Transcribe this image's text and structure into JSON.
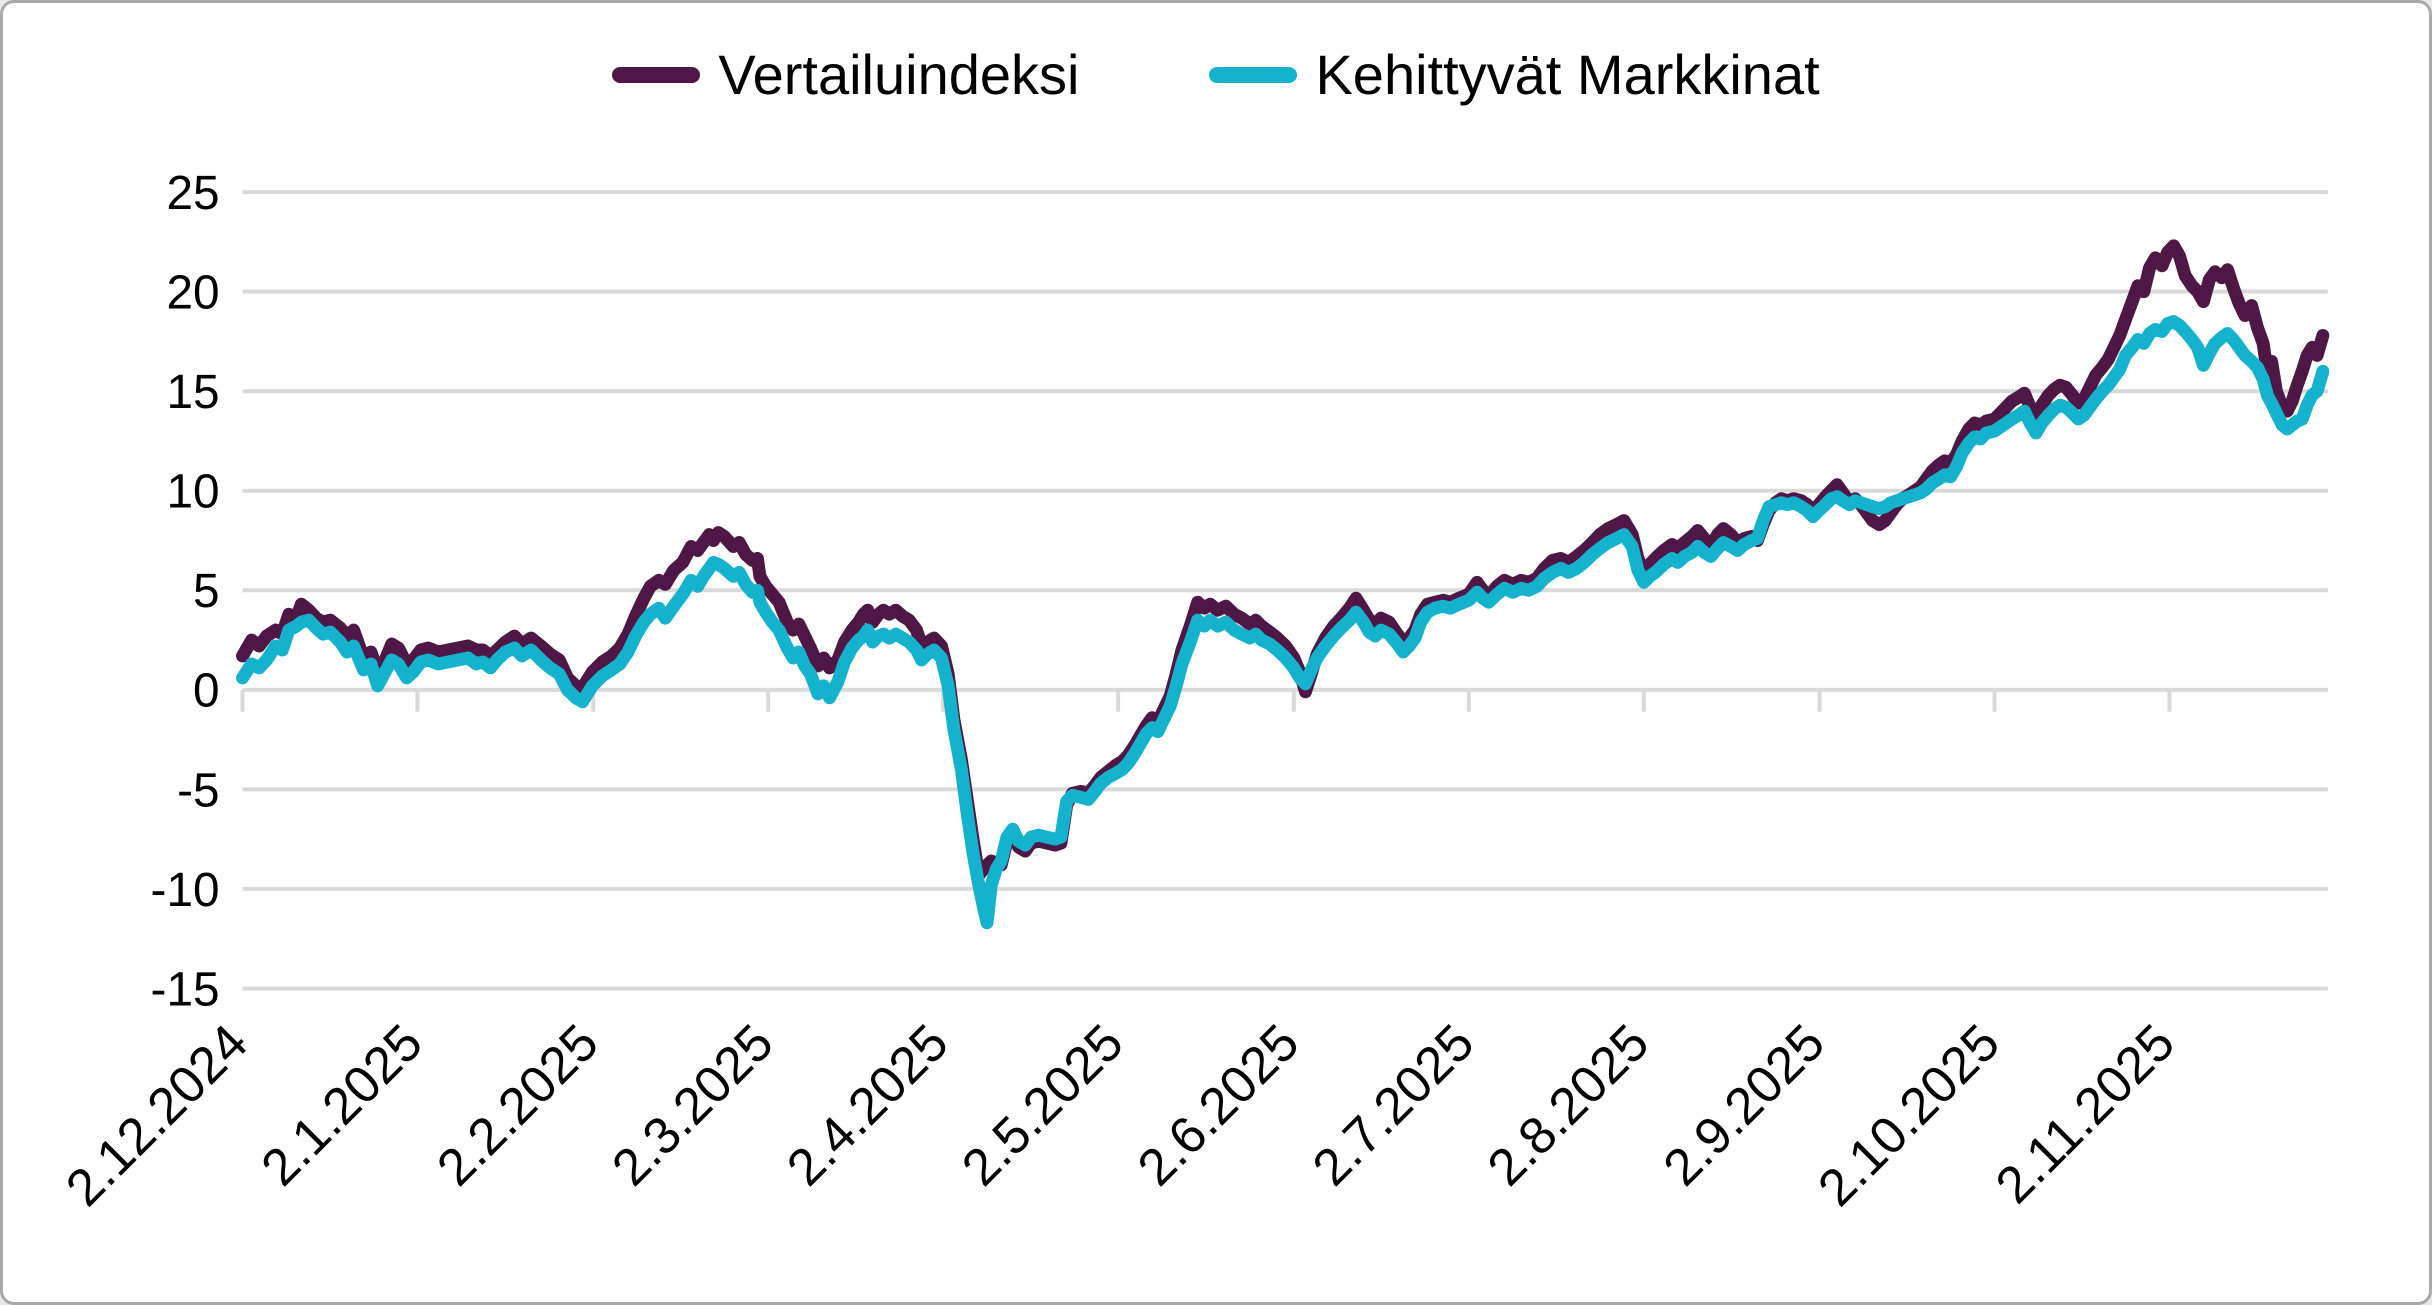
{
  "chart_data": {
    "type": "line",
    "title": "",
    "xlabel": "",
    "ylabel": "",
    "grid": "horizontal",
    "legend_position": "top-center",
    "y_axis": {
      "min": -15,
      "max": 25,
      "step": 5,
      "tick_labels": [
        "25",
        "20",
        "15",
        "10",
        "5",
        "0",
        "-5",
        "-10",
        "-15"
      ]
    },
    "x_axis": {
      "unit": "trading days since first date",
      "max_day": 251.5,
      "tick_labels": [
        "2.12.2024",
        "2.1.2025",
        "2.2.2025",
        "2.3.2025",
        "2.4.2025",
        "2.5.2025",
        "2.6.2025",
        "2.7.2025",
        "2.8.2025",
        "2.9.2025",
        "2.10.2025",
        "2.11.2025"
      ],
      "tick_days": [
        0,
        21.1,
        42.3,
        63.4,
        84.5,
        105.6,
        126.8,
        147.9,
        169,
        190.2,
        211.3,
        232.4
      ]
    },
    "series": [
      {
        "name": "Vertailuindeksi",
        "color": "#4e1745",
        "width": 13
      },
      {
        "name": "Kehittyvät Markkinat",
        "color": "#14b2cc",
        "width": 13
      }
    ],
    "points_format": [
      "day",
      "Vertailuindeksi",
      "Kehittyvät Markkinat"
    ],
    "points": [
      [
        0,
        1.7,
        0.6
      ],
      [
        1.1,
        2.5,
        1.3
      ],
      [
        2,
        2.2,
        1.1
      ],
      [
        2.9,
        2.7,
        1.5
      ],
      [
        4,
        3,
        2.2
      ],
      [
        4.8,
        2.8,
        2
      ],
      [
        5.6,
        3.8,
        3
      ],
      [
        6.5,
        3.6,
        3.2
      ],
      [
        7.1,
        4.3,
        3.4
      ],
      [
        8,
        4,
        3.5
      ],
      [
        8.9,
        3.6,
        3.1
      ],
      [
        9.7,
        3.4,
        2.8
      ],
      [
        10.6,
        3.5,
        2.9
      ],
      [
        11.8,
        3.1,
        2.4
      ],
      [
        12.6,
        2.7,
        1.9
      ],
      [
        13.4,
        3,
        2.2
      ],
      [
        14.6,
        1.6,
        1
      ],
      [
        15.5,
        1.9,
        1.3
      ],
      [
        16.3,
        0.9,
        0.2
      ],
      [
        17.2,
        1.5,
        0.9
      ],
      [
        18,
        2.3,
        1.5
      ],
      [
        18.8,
        2.1,
        1.3
      ],
      [
        19.8,
        1.3,
        0.6
      ],
      [
        20.6,
        1.5,
        0.9
      ],
      [
        21.5,
        2,
        1.4
      ],
      [
        22.4,
        2.1,
        1.5
      ],
      [
        23.6,
        1.9,
        1.3
      ],
      [
        24.8,
        2,
        1.4
      ],
      [
        26,
        2.1,
        1.5
      ],
      [
        27.2,
        2.2,
        1.6
      ],
      [
        28.2,
        2,
        1.3
      ],
      [
        29,
        2,
        1.4
      ],
      [
        29.9,
        1.7,
        1.1
      ],
      [
        30.7,
        2,
        1.5
      ],
      [
        31.7,
        2.4,
        1.9
      ],
      [
        32.8,
        2.7,
        2.1
      ],
      [
        33.7,
        2.3,
        1.7
      ],
      [
        34.8,
        2.6,
        2
      ],
      [
        36,
        2.2,
        1.5
      ],
      [
        37.1,
        1.8,
        1.1
      ],
      [
        38.2,
        1.5,
        0.8
      ],
      [
        39.2,
        0.6,
        0
      ],
      [
        40.2,
        0.2,
        -0.4
      ],
      [
        41,
        0.1,
        -0.6
      ],
      [
        42.2,
        0.9,
        0.2
      ],
      [
        43.4,
        1.4,
        0.7
      ],
      [
        44.5,
        1.7,
        1
      ],
      [
        45.5,
        2.1,
        1.3
      ],
      [
        46.5,
        2.8,
        1.9
      ],
      [
        47.4,
        3.7,
        2.7
      ],
      [
        48.4,
        4.6,
        3.4
      ],
      [
        49.2,
        5.2,
        3.8
      ],
      [
        50.2,
        5.5,
        4.1
      ],
      [
        51,
        5.3,
        3.6
      ],
      [
        52,
        6,
        4.2
      ],
      [
        53.1,
        6.4,
        4.8
      ],
      [
        54.1,
        7.2,
        5.5
      ],
      [
        54.9,
        7,
        5.2
      ],
      [
        55.6,
        7.4,
        5.7
      ],
      [
        56.3,
        7.8,
        6.1
      ],
      [
        56.8,
        7.5,
        6.4
      ],
      [
        57.4,
        7.9,
        6.3
      ],
      [
        58.1,
        7.7,
        6.1
      ],
      [
        59.2,
        7.2,
        5.7
      ],
      [
        59.9,
        7.4,
        5.9
      ],
      [
        60.7,
        6.8,
        5.3
      ],
      [
        61.5,
        6.5,
        4.9
      ],
      [
        62.1,
        6.6,
        5
      ],
      [
        62.4,
        5.7,
        4.4
      ],
      [
        63.1,
        5.2,
        3.9
      ],
      [
        63.9,
        4.8,
        3.4
      ],
      [
        64.7,
        4.4,
        3
      ],
      [
        65.7,
        3.4,
        2.1
      ],
      [
        66.4,
        3,
        1.6
      ],
      [
        67.1,
        3.3,
        1.9
      ],
      [
        67.8,
        2.7,
        1.2
      ],
      [
        68.5,
        2.1,
        0.8
      ],
      [
        69.4,
        1.2,
        -0.2
      ],
      [
        70.1,
        1.6,
        0.2
      ],
      [
        70.8,
        1.1,
        -0.4
      ],
      [
        71.8,
        1.5,
        0.4
      ],
      [
        72.6,
        2.4,
        1.4
      ],
      [
        73.5,
        3,
        2.1
      ],
      [
        74.3,
        3.4,
        2.5
      ],
      [
        74.9,
        3.8,
        2.7
      ],
      [
        75.4,
        4,
        3
      ],
      [
        76,
        3.4,
        2.4
      ],
      [
        76.7,
        3.8,
        2.7
      ],
      [
        77.3,
        4,
        2.8
      ],
      [
        78,
        3.8,
        2.6
      ],
      [
        78.8,
        4,
        2.8
      ],
      [
        79.6,
        3.7,
        2.6
      ],
      [
        80.4,
        3.5,
        2.4
      ],
      [
        81.3,
        3,
        2
      ],
      [
        81.9,
        2.2,
        1.5
      ],
      [
        82.6,
        2.4,
        1.8
      ],
      [
        83.4,
        2.6,
        2
      ],
      [
        84.3,
        2.2,
        1.6
      ],
      [
        85.1,
        0.8,
        0.2
      ],
      [
        85.8,
        -1.5,
        -2
      ],
      [
        86.7,
        -3.5,
        -4
      ],
      [
        87.4,
        -5.5,
        -6.2
      ],
      [
        88.1,
        -7.5,
        -8.2
      ],
      [
        88.8,
        -9.3,
        -9.8
      ],
      [
        89.4,
        -9,
        -11
      ],
      [
        89.8,
        -8.8,
        -11.7
      ],
      [
        90.3,
        -8.6,
        -9.8
      ],
      [
        90.9,
        -8.7,
        -9
      ],
      [
        91.5,
        -8.8,
        -8.6
      ],
      [
        92.2,
        -7.6,
        -7.4
      ],
      [
        92.9,
        -7.2,
        -7
      ],
      [
        93.6,
        -7.9,
        -7.6
      ],
      [
        94.4,
        -8.1,
        -7.8
      ],
      [
        95.1,
        -7.7,
        -7.4
      ],
      [
        96,
        -7.6,
        -7.3
      ],
      [
        97,
        -7.7,
        -7.4
      ],
      [
        98,
        -7.8,
        -7.5
      ],
      [
        98.7,
        -7.7,
        -7.4
      ],
      [
        99.4,
        -5.8,
        -5.6
      ],
      [
        100.1,
        -5.2,
        -5.3
      ],
      [
        101.1,
        -5.1,
        -5.4
      ],
      [
        102,
        -5.2,
        -5.5
      ],
      [
        102.8,
        -4.8,
        -5.1
      ],
      [
        103.5,
        -4.4,
        -4.7
      ],
      [
        104.4,
        -4.1,
        -4.4
      ],
      [
        105.3,
        -3.8,
        -4.2
      ],
      [
        106.1,
        -3.6,
        -4
      ],
      [
        106.8,
        -3.3,
        -3.7
      ],
      [
        107.6,
        -2.8,
        -3.2
      ],
      [
        108.3,
        -2.3,
        -2.7
      ],
      [
        109,
        -1.8,
        -2.2
      ],
      [
        109.7,
        -1.4,
        -1.9
      ],
      [
        110.4,
        -1.6,
        -2.1
      ],
      [
        111.2,
        -0.9,
        -1.4
      ],
      [
        111.9,
        -0.3,
        -0.8
      ],
      [
        112.6,
        0.8,
        0.2
      ],
      [
        113.3,
        2,
        1.3
      ],
      [
        114.3,
        3.2,
        2.4
      ],
      [
        115.2,
        4.4,
        3.5
      ],
      [
        116,
        4.1,
        3.2
      ],
      [
        116.7,
        4.3,
        3.5
      ],
      [
        117.6,
        4,
        3.2
      ],
      [
        118.6,
        4.2,
        3.4
      ],
      [
        119.6,
        3.8,
        3
      ],
      [
        120.5,
        3.6,
        2.8
      ],
      [
        121.5,
        3.3,
        2.6
      ],
      [
        122.2,
        3.5,
        2.8
      ],
      [
        122.9,
        3.2,
        2.5
      ],
      [
        123.9,
        2.9,
        2.3
      ],
      [
        124.8,
        2.6,
        2
      ],
      [
        125.8,
        2.2,
        1.6
      ],
      [
        126.8,
        1.6,
        1.1
      ],
      [
        127.5,
        0.9,
        0.6
      ],
      [
        128.2,
        -0.1,
        0.3
      ],
      [
        128.9,
        0.8,
        1
      ],
      [
        129.6,
        1.8,
        1.6
      ],
      [
        130.6,
        2.6,
        2.2
      ],
      [
        131.6,
        3.2,
        2.7
      ],
      [
        132.5,
        3.6,
        3.1
      ],
      [
        133.5,
        4.1,
        3.5
      ],
      [
        134.3,
        4.6,
        3.9
      ],
      [
        135.2,
        4,
        3.4
      ],
      [
        135.9,
        3.5,
        2.9
      ],
      [
        136.6,
        3.3,
        2.7
      ],
      [
        137.3,
        3.6,
        3
      ],
      [
        138.3,
        3.4,
        2.8
      ],
      [
        139.1,
        2.9,
        2.4
      ],
      [
        140,
        2.4,
        1.9
      ],
      [
        140.7,
        2.6,
        2.2
      ],
      [
        141.4,
        3,
        2.6
      ],
      [
        142.1,
        3.8,
        3.4
      ],
      [
        142.9,
        4.3,
        3.9
      ],
      [
        143.8,
        4.4,
        4.1
      ],
      [
        144.8,
        4.5,
        4.2
      ],
      [
        145.7,
        4.4,
        4.1
      ],
      [
        146.7,
        4.6,
        4.3
      ],
      [
        147.9,
        4.8,
        4.5
      ],
      [
        148.9,
        5.4,
        4.9
      ],
      [
        149.6,
        5,
        4.6
      ],
      [
        150.3,
        4.7,
        4.4
      ],
      [
        151.3,
        5.2,
        4.8
      ],
      [
        152.2,
        5.5,
        5.1
      ],
      [
        153.2,
        5.3,
        4.9
      ],
      [
        154.2,
        5.5,
        5.1
      ],
      [
        155.1,
        5.4,
        5
      ],
      [
        156.1,
        5.6,
        5.2
      ],
      [
        157,
        6.1,
        5.6
      ],
      [
        158,
        6.5,
        5.9
      ],
      [
        159,
        6.6,
        6.1
      ],
      [
        159.9,
        6.4,
        5.9
      ],
      [
        160.9,
        6.7,
        6.1
      ],
      [
        161.8,
        7,
        6.4
      ],
      [
        162.8,
        7.4,
        6.8
      ],
      [
        163.7,
        7.8,
        7.1
      ],
      [
        164.7,
        8.1,
        7.4
      ],
      [
        165.7,
        8.3,
        7.6
      ],
      [
        166.6,
        8.5,
        7.8
      ],
      [
        167.6,
        7.8,
        7.2
      ],
      [
        168.3,
        6.6,
        6
      ],
      [
        169,
        5.9,
        5.4
      ],
      [
        169.7,
        6.3,
        5.7
      ],
      [
        170.4,
        6.6,
        5.9
      ],
      [
        171.4,
        7,
        6.3
      ],
      [
        172.4,
        7.3,
        6.6
      ],
      [
        173.1,
        7.1,
        6.4
      ],
      [
        173.9,
        7.4,
        6.7
      ],
      [
        174.8,
        7.7,
        6.9
      ],
      [
        175.5,
        8,
        7.2
      ],
      [
        176.3,
        7.6,
        6.9
      ],
      [
        177.1,
        7.2,
        6.7
      ],
      [
        177.9,
        7.8,
        7.1
      ],
      [
        178.6,
        8.1,
        7.4
      ],
      [
        179.5,
        7.8,
        7.2
      ],
      [
        180.3,
        7.4,
        7
      ],
      [
        181.1,
        7.6,
        7.3
      ],
      [
        182,
        7.7,
        7.5
      ],
      [
        182.7,
        7.5,
        7.6
      ],
      [
        183.4,
        8.3,
        8.5
      ],
      [
        184.1,
        9,
        9.2
      ],
      [
        184.9,
        9.4,
        9.3
      ],
      [
        185.6,
        9.6,
        9.4
      ],
      [
        186.3,
        9.5,
        9.3
      ],
      [
        187.1,
        9.6,
        9.4
      ],
      [
        188,
        9.5,
        9.2
      ],
      [
        188.7,
        9.3,
        9
      ],
      [
        189.4,
        8.9,
        8.7
      ],
      [
        190.1,
        9.3,
        9
      ],
      [
        190.9,
        9.7,
        9.3
      ],
      [
        191.6,
        10,
        9.6
      ],
      [
        192.3,
        10.3,
        9.7
      ],
      [
        193,
        9.9,
        9.5
      ],
      [
        193.8,
        9.4,
        9.3
      ],
      [
        194.5,
        9.6,
        9.5
      ],
      [
        195.2,
        9.3,
        9.4
      ],
      [
        195.9,
        8.9,
        9.3
      ],
      [
        196.6,
        8.5,
        9.2
      ],
      [
        197.4,
        8.3,
        9.1
      ],
      [
        198.1,
        8.5,
        9.2
      ],
      [
        198.8,
        8.9,
        9.4
      ],
      [
        199.5,
        9.3,
        9.5
      ],
      [
        200.2,
        9.6,
        9.6
      ],
      [
        201,
        9.8,
        9.7
      ],
      [
        201.7,
        10,
        9.8
      ],
      [
        202.4,
        10.2,
        9.9
      ],
      [
        203.1,
        10.6,
        10.1
      ],
      [
        203.8,
        11,
        10.4
      ],
      [
        204.6,
        11.3,
        10.6
      ],
      [
        205.3,
        11.5,
        10.8
      ],
      [
        206,
        11.4,
        10.7
      ],
      [
        206.7,
        11.8,
        11.2
      ],
      [
        207.4,
        12.5,
        11.9
      ],
      [
        208.2,
        13.1,
        12.4
      ],
      [
        208.9,
        13.4,
        12.7
      ],
      [
        209.6,
        13.3,
        12.6
      ],
      [
        210.3,
        13.5,
        12.9
      ],
      [
        211.3,
        13.6,
        13
      ],
      [
        212,
        13.9,
        13.2
      ],
      [
        212.7,
        14.2,
        13.4
      ],
      [
        213.4,
        14.5,
        13.6
      ],
      [
        214.2,
        14.7,
        13.8
      ],
      [
        214.9,
        14.9,
        14
      ],
      [
        215.6,
        14.2,
        13.4
      ],
      [
        216.3,
        13.6,
        12.9
      ],
      [
        217,
        14.3,
        13.4
      ],
      [
        217.8,
        14.8,
        13.8
      ],
      [
        218.5,
        15.1,
        14.1
      ],
      [
        219.2,
        15.3,
        14.3
      ],
      [
        219.9,
        15.2,
        14.2
      ],
      [
        220.7,
        14.8,
        13.9
      ],
      [
        221.4,
        14.4,
        13.6
      ],
      [
        222.1,
        14.6,
        13.8
      ],
      [
        222.8,
        15.2,
        14.2
      ],
      [
        223.5,
        15.8,
        14.6
      ],
      [
        224.3,
        16.2,
        15
      ],
      [
        225,
        16.6,
        15.3
      ],
      [
        225.7,
        17.2,
        15.7
      ],
      [
        226.4,
        17.8,
        16.1
      ],
      [
        227.1,
        18.6,
        16.8
      ],
      [
        227.9,
        19.5,
        17.2
      ],
      [
        228.6,
        20.3,
        17.6
      ],
      [
        229.3,
        20,
        17.4
      ],
      [
        230,
        21.2,
        17.9
      ],
      [
        230.7,
        21.7,
        18.1
      ],
      [
        231.5,
        21.3,
        18
      ],
      [
        232.2,
        22,
        18.4
      ],
      [
        232.9,
        22.3,
        18.5
      ],
      [
        233.6,
        21.8,
        18.3
      ],
      [
        234.3,
        20.8,
        18
      ],
      [
        235.1,
        20.3,
        17.6
      ],
      [
        235.8,
        20,
        17.2
      ],
      [
        236.5,
        19.5,
        16.3
      ],
      [
        237.2,
        20.6,
        16.9
      ],
      [
        237.9,
        21,
        17.4
      ],
      [
        238.7,
        20.7,
        17.7
      ],
      [
        239.4,
        21.1,
        17.9
      ],
      [
        240.1,
        20.2,
        17.6
      ],
      [
        240.8,
        19.4,
        17.2
      ],
      [
        241.5,
        18.8,
        16.8
      ],
      [
        242.3,
        19.3,
        16.5
      ],
      [
        243,
        18.2,
        16.2
      ],
      [
        243.7,
        17.4,
        15.6
      ],
      [
        244.2,
        15.9,
        14.8
      ],
      [
        244.7,
        16.5,
        14.4
      ],
      [
        245.3,
        15,
        13.9
      ],
      [
        246,
        14.2,
        13.3
      ],
      [
        246.6,
        14,
        13.1
      ],
      [
        247.2,
        14.5,
        13.3
      ],
      [
        247.8,
        15.3,
        13.5
      ],
      [
        248.4,
        16,
        13.6
      ],
      [
        249,
        16.8,
        14.3
      ],
      [
        249.6,
        17.2,
        14.8
      ],
      [
        250.2,
        16.8,
        15
      ],
      [
        250.9,
        17.8,
        16
      ]
    ],
    "colors": {
      "gridline": "#d9d9d9",
      "text": "#000000",
      "frame_border": "#a9a9a9",
      "background": "#ffffff"
    }
  }
}
